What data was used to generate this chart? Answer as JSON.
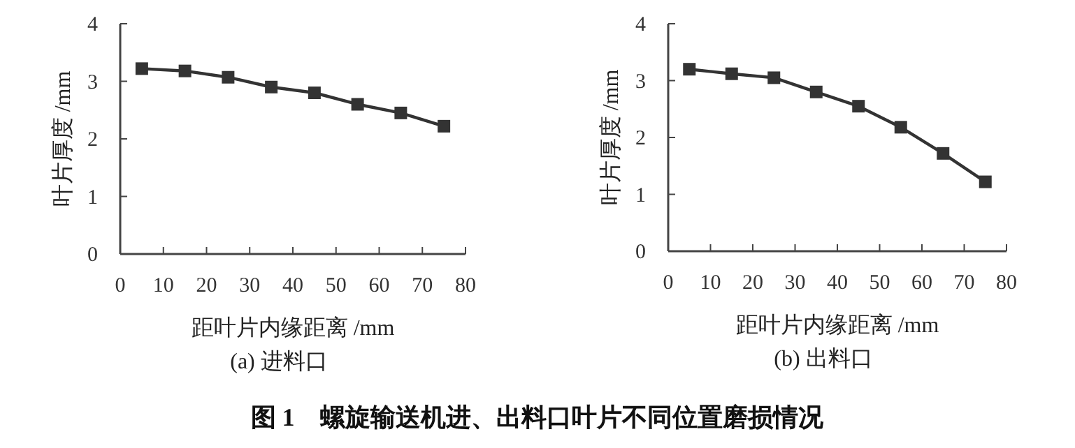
{
  "chart_data": [
    {
      "type": "line",
      "title": "(a) 进料口",
      "xlabel": "距叶片内缘距离 /mm",
      "ylabel": "叶片厚度 /mm",
      "x": [
        5,
        15,
        25,
        35,
        45,
        55,
        65,
        75
      ],
      "values": [
        3.22,
        3.18,
        3.07,
        2.9,
        2.8,
        2.6,
        2.45,
        2.22
      ],
      "color": "#333333",
      "marker": "square",
      "line_style": "solid",
      "xlim": [
        0,
        80
      ],
      "ylim": [
        0,
        4
      ],
      "xticks": [
        0,
        10,
        20,
        30,
        40,
        50,
        60,
        70,
        80
      ],
      "yticks": [
        0,
        1,
        2,
        3,
        4
      ],
      "annotations": [
        "图 1　螺旋输送机进、出料口叶片不同位置磨损情况"
      ]
    },
    {
      "type": "line",
      "title": "(b) 出料口",
      "xlabel": "距叶片内缘距离 /mm",
      "ylabel": "叶片厚度 /mm",
      "x": [
        5,
        15,
        25,
        35,
        45,
        55,
        65,
        75
      ],
      "values": [
        3.2,
        3.12,
        3.05,
        2.8,
        2.55,
        2.18,
        1.72,
        1.22
      ],
      "color": "#333333",
      "marker": "square",
      "line_style": "solid",
      "xlim": [
        0,
        80
      ],
      "ylim": [
        0,
        4
      ],
      "xticks": [
        0,
        10,
        20,
        30,
        40,
        50,
        60,
        70,
        80
      ],
      "yticks": [
        0,
        1,
        2,
        3,
        4
      ]
    }
  ]
}
